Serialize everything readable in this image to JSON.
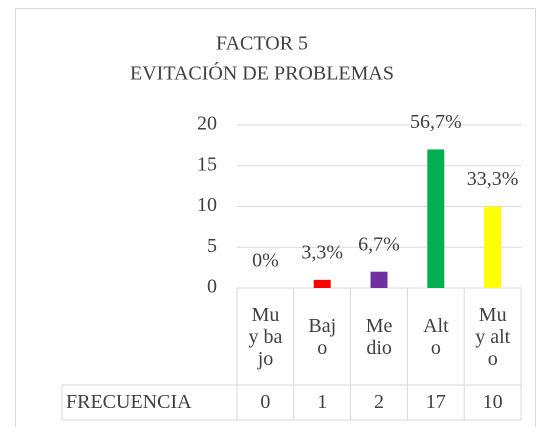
{
  "chart_data": {
    "type": "bar",
    "title": "FACTOR 5",
    "subtitle": "EVITACIÓN DE PROBLEMAS",
    "categories": [
      "Muy bajo",
      "Bajo",
      "Medio",
      "Alto",
      "Muy alto"
    ],
    "series": [
      {
        "name": "FRECUENCIA",
        "values": [
          0,
          1,
          2,
          17,
          10
        ]
      }
    ],
    "colors": [
      "#c00000",
      "#ff0000",
      "#7030a0",
      "#00b050",
      "#ffff00"
    ],
    "percentages": [
      {
        "value": 0,
        "label": "0%"
      },
      {
        "value": 3.3,
        "label": "3,3%"
      },
      {
        "value": 6.7,
        "label": "6,7%"
      },
      {
        "value": 56.7,
        "label": "56,7%"
      },
      {
        "value": 33.3,
        "label": "33,3%"
      }
    ],
    "ylim": [
      0,
      20
    ],
    "yticks": [
      0,
      5,
      10,
      15,
      20
    ],
    "grid": true
  }
}
